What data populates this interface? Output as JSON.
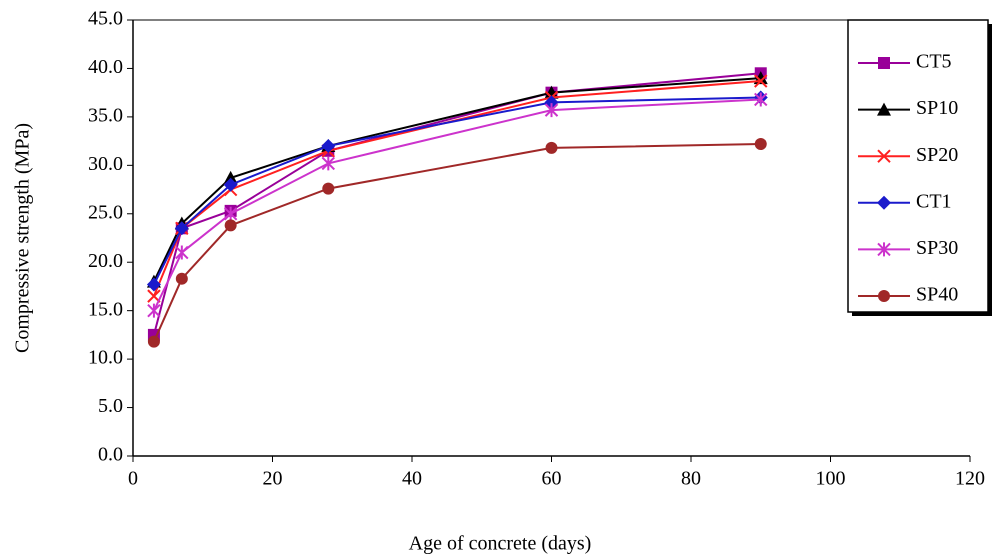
{
  "chart_data": {
    "type": "line",
    "x_label": "Age of concrete (days)",
    "y_label": "Compressive strength (MPa)",
    "x": [
      3,
      7,
      14,
      28,
      60,
      90
    ],
    "series": [
      {
        "name": "CT5",
        "color": "#990099",
        "marker": "square",
        "values": [
          12.5,
          23.5,
          25.3,
          31.5,
          37.5,
          39.5
        ]
      },
      {
        "name": "SP10",
        "color": "#000000",
        "marker": "triangle",
        "values": [
          18.0,
          24.0,
          28.7,
          32.0,
          37.5,
          39.0
        ]
      },
      {
        "name": "SP20",
        "color": "#ff2020",
        "marker": "x",
        "values": [
          16.5,
          23.5,
          27.5,
          31.5,
          37.0,
          38.7
        ]
      },
      {
        "name": "CT1",
        "color": "#1a1acc",
        "marker": "diamond",
        "values": [
          17.7,
          23.5,
          28.0,
          32.0,
          36.5,
          37.0
        ]
      },
      {
        "name": "SP30",
        "color": "#cc33cc",
        "marker": "star",
        "values": [
          15.0,
          21.0,
          25.0,
          30.2,
          35.7,
          36.8
        ]
      },
      {
        "name": "SP40",
        "color": "#a02828",
        "marker": "circle",
        "values": [
          11.8,
          18.3,
          23.8,
          27.6,
          31.8,
          32.2
        ]
      }
    ],
    "xlim": [
      0,
      120
    ],
    "xticks": [
      0,
      20,
      40,
      60,
      80,
      100,
      120
    ],
    "ylim": [
      0,
      45
    ],
    "yticks": [
      {
        "value": 0,
        "label": "0.0"
      },
      {
        "value": 5,
        "label": "5.0"
      },
      {
        "value": 10,
        "label": "10.0"
      },
      {
        "value": 15,
        "label": "15.0"
      },
      {
        "value": 20,
        "label": "20.0"
      },
      {
        "value": 25,
        "label": "25.0"
      },
      {
        "value": 30,
        "label": "30.0"
      },
      {
        "value": 35,
        "label": "35.0"
      },
      {
        "value": 40,
        "label": "40.0"
      },
      {
        "value": 45,
        "label": "45.0"
      }
    ],
    "grid": false,
    "legend": "right"
  }
}
